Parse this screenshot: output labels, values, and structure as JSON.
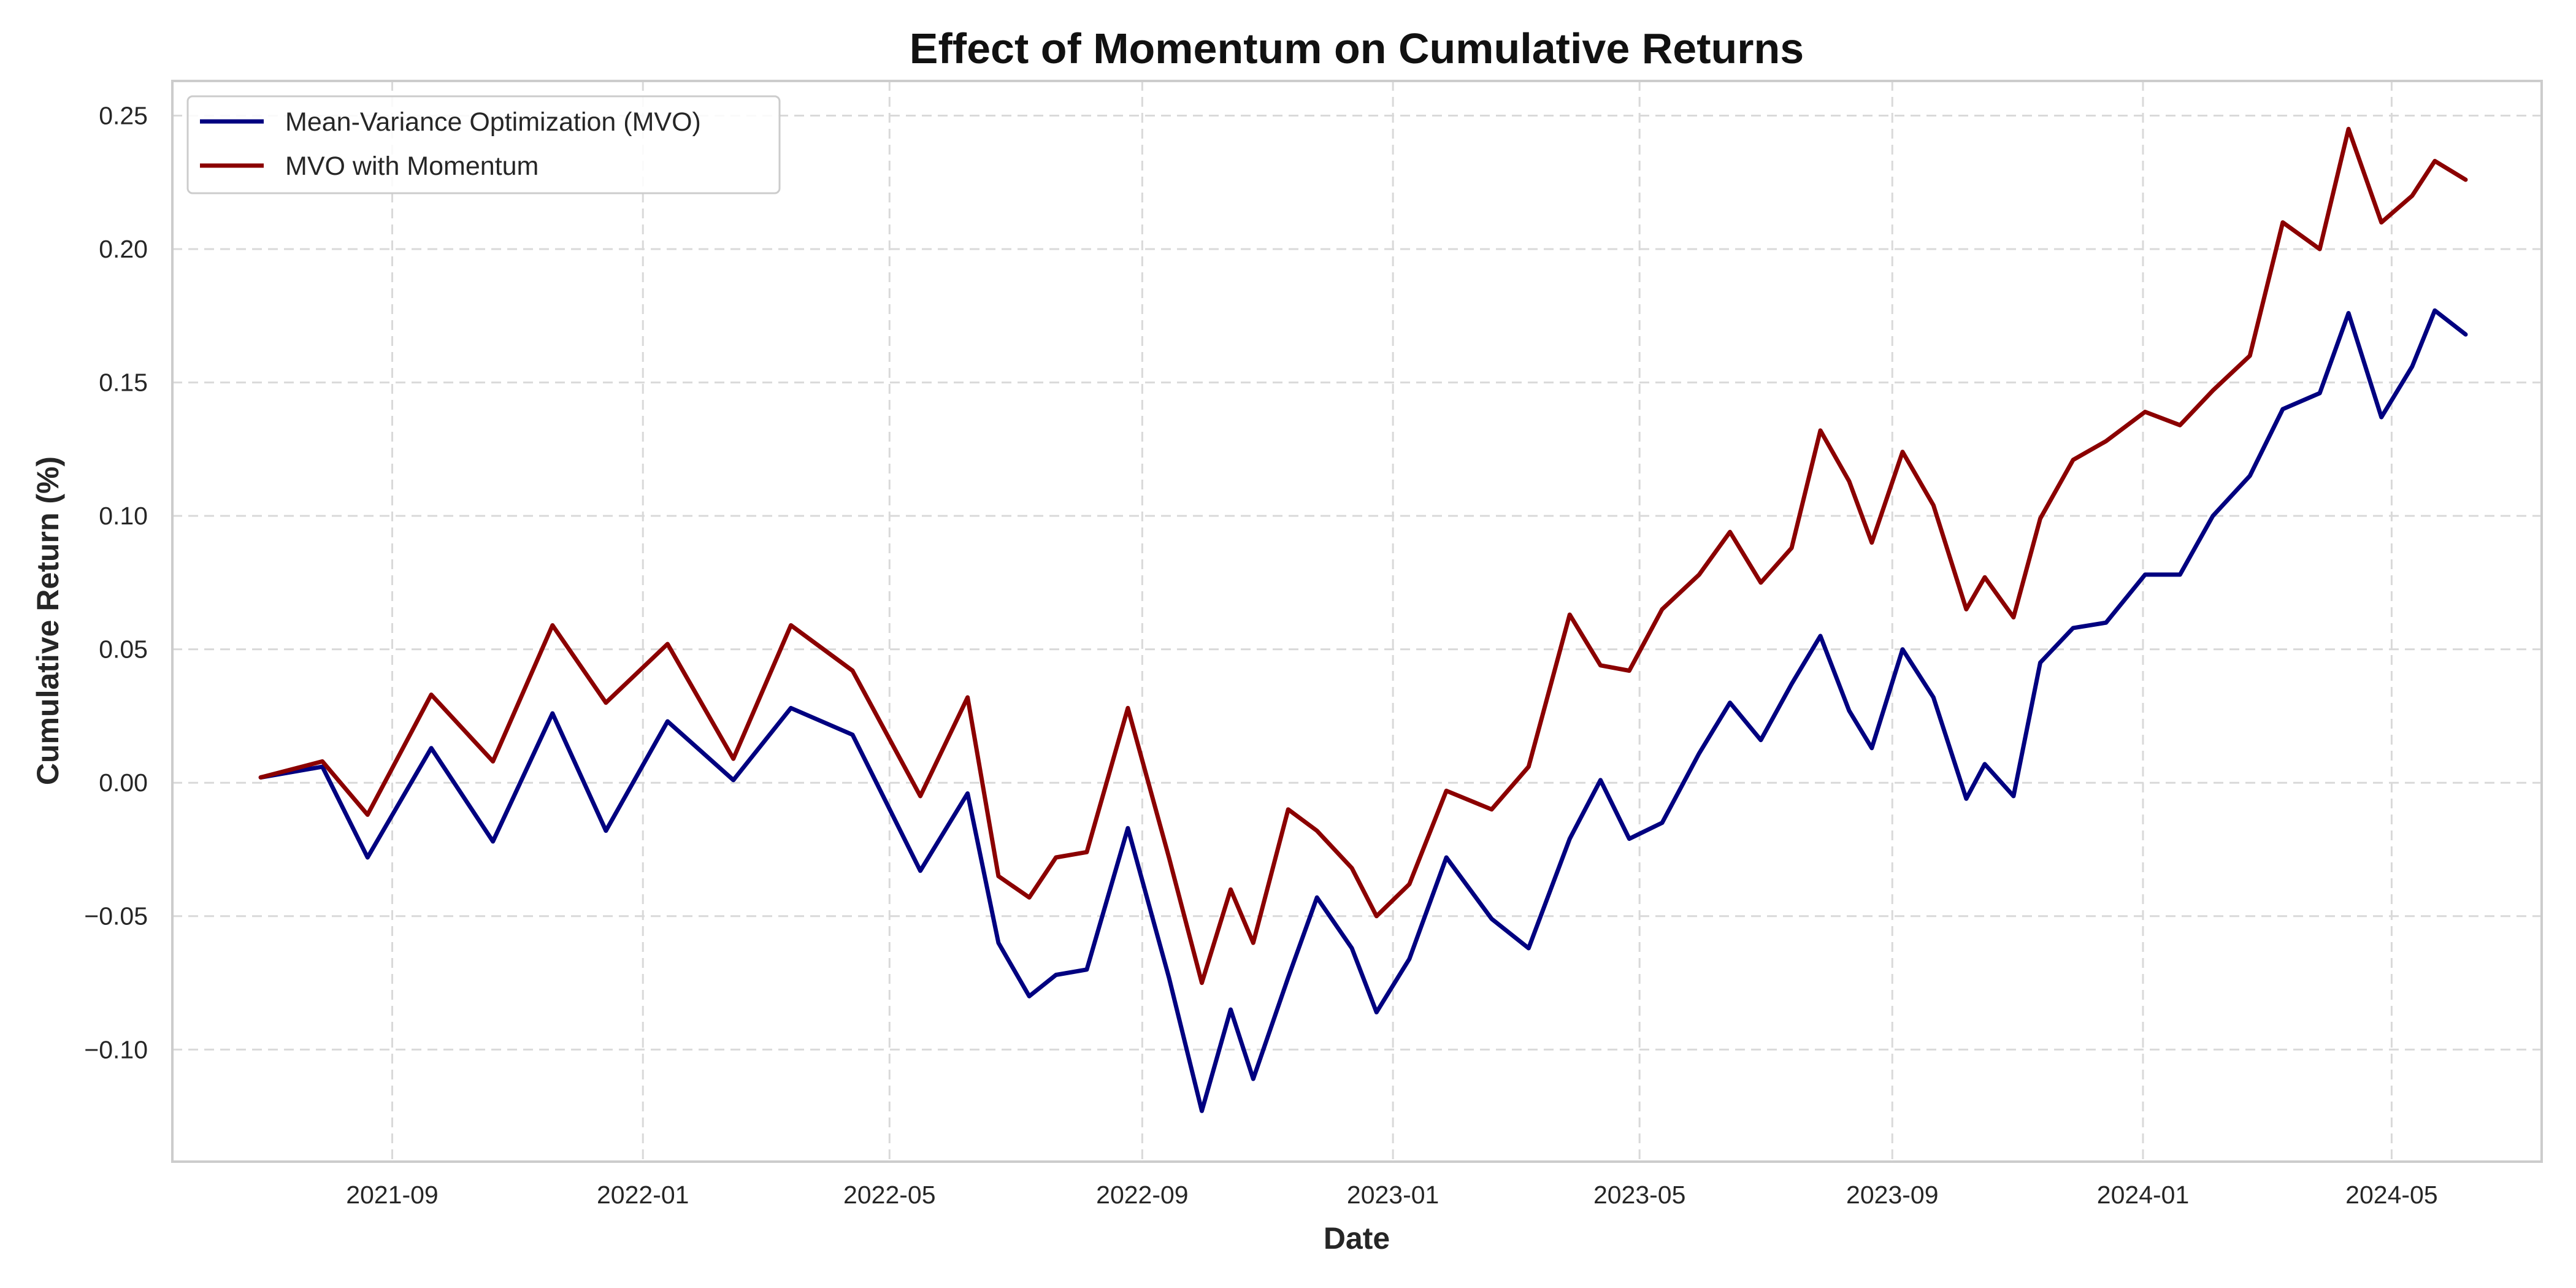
{
  "chart_data": {
    "type": "line",
    "title": "Effect of Momentum on Cumulative Returns",
    "xlabel": "Date",
    "ylabel": "Cumulative Return (%)",
    "x_ticks": [
      "2021-09",
      "2022-01",
      "2022-05",
      "2022-09",
      "2023-01",
      "2023-05",
      "2023-09",
      "2024-01",
      "2024-05"
    ],
    "y_ticks": [
      "0.25",
      "0.20",
      "0.15",
      "0.10",
      "0.05",
      "0.00",
      "−0.05",
      "−0.10"
    ],
    "xlim": [
      "2021-05-17",
      "2024-07-13"
    ],
    "ylim": [
      -0.142,
      0.263
    ],
    "grid": true,
    "legend_position": "top-left",
    "x": [
      "2021-06-29",
      "2021-07-29",
      "2021-08-20",
      "2021-09-20",
      "2021-10-20",
      "2021-11-18",
      "2021-12-14",
      "2022-01-13",
      "2022-02-14",
      "2022-03-14",
      "2022-04-13",
      "2022-05-16",
      "2022-06-08",
      "2022-06-23",
      "2022-07-08",
      "2022-07-21",
      "2022-08-05",
      "2022-08-25",
      "2022-09-14",
      "2022-09-30",
      "2022-10-14",
      "2022-10-25",
      "2022-11-11",
      "2022-11-25",
      "2022-12-12",
      "2022-12-24",
      "2023-01-09",
      "2023-01-27",
      "2023-02-18",
      "2023-03-08",
      "2023-03-28",
      "2023-04-12",
      "2023-04-26",
      "2023-05-12",
      "2023-05-30",
      "2023-06-14",
      "2023-06-29",
      "2023-07-14",
      "2023-07-28",
      "2023-08-11",
      "2023-08-22",
      "2023-09-06",
      "2023-09-21",
      "2023-10-07",
      "2023-10-16",
      "2023-10-30",
      "2023-11-12",
      "2023-11-28",
      "2023-12-14",
      "2024-01-02",
      "2024-01-19",
      "2024-02-04",
      "2024-02-22",
      "2024-03-09",
      "2024-03-27",
      "2024-04-10",
      "2024-04-26",
      "2024-05-11",
      "2024-05-22",
      "2024-06-06"
    ],
    "series": [
      {
        "name": "Mean-Variance Optimization (MVO)",
        "color": "#000080",
        "values": [
          0.002,
          0.006,
          -0.028,
          0.013,
          -0.022,
          0.026,
          -0.018,
          0.023,
          0.001,
          0.028,
          0.018,
          -0.033,
          -0.004,
          -0.06,
          -0.08,
          -0.072,
          -0.07,
          -0.017,
          -0.073,
          -0.123,
          -0.085,
          -0.111,
          -0.073,
          -0.043,
          -0.062,
          -0.086,
          -0.066,
          -0.028,
          -0.051,
          -0.062,
          -0.021,
          0.001,
          -0.021,
          -0.015,
          0.011,
          0.03,
          0.016,
          0.037,
          0.055,
          0.027,
          0.013,
          0.05,
          0.032,
          -0.006,
          0.007,
          -0.005,
          0.045,
          0.058,
          0.06,
          0.078,
          0.078,
          0.1,
          0.115,
          0.14,
          0.146,
          0.176,
          0.137,
          0.156,
          0.177,
          0.168
        ]
      },
      {
        "name": "MVO with Momentum",
        "color": "#8b0000",
        "values": [
          0.002,
          0.008,
          -0.012,
          0.033,
          0.008,
          0.059,
          0.03,
          0.052,
          0.009,
          0.059,
          0.042,
          -0.005,
          0.032,
          -0.035,
          -0.043,
          -0.028,
          -0.026,
          0.028,
          -0.028,
          -0.075,
          -0.04,
          -0.06,
          -0.01,
          -0.018,
          -0.032,
          -0.05,
          -0.038,
          -0.003,
          -0.01,
          0.006,
          0.063,
          0.044,
          0.042,
          0.065,
          0.078,
          0.094,
          0.075,
          0.088,
          0.132,
          0.113,
          0.09,
          0.124,
          0.104,
          0.065,
          0.077,
          0.062,
          0.099,
          0.121,
          0.128,
          0.139,
          0.134,
          0.147,
          0.16,
          0.21,
          0.2,
          0.245,
          0.21,
          0.22,
          0.233,
          0.226
        ]
      }
    ]
  }
}
